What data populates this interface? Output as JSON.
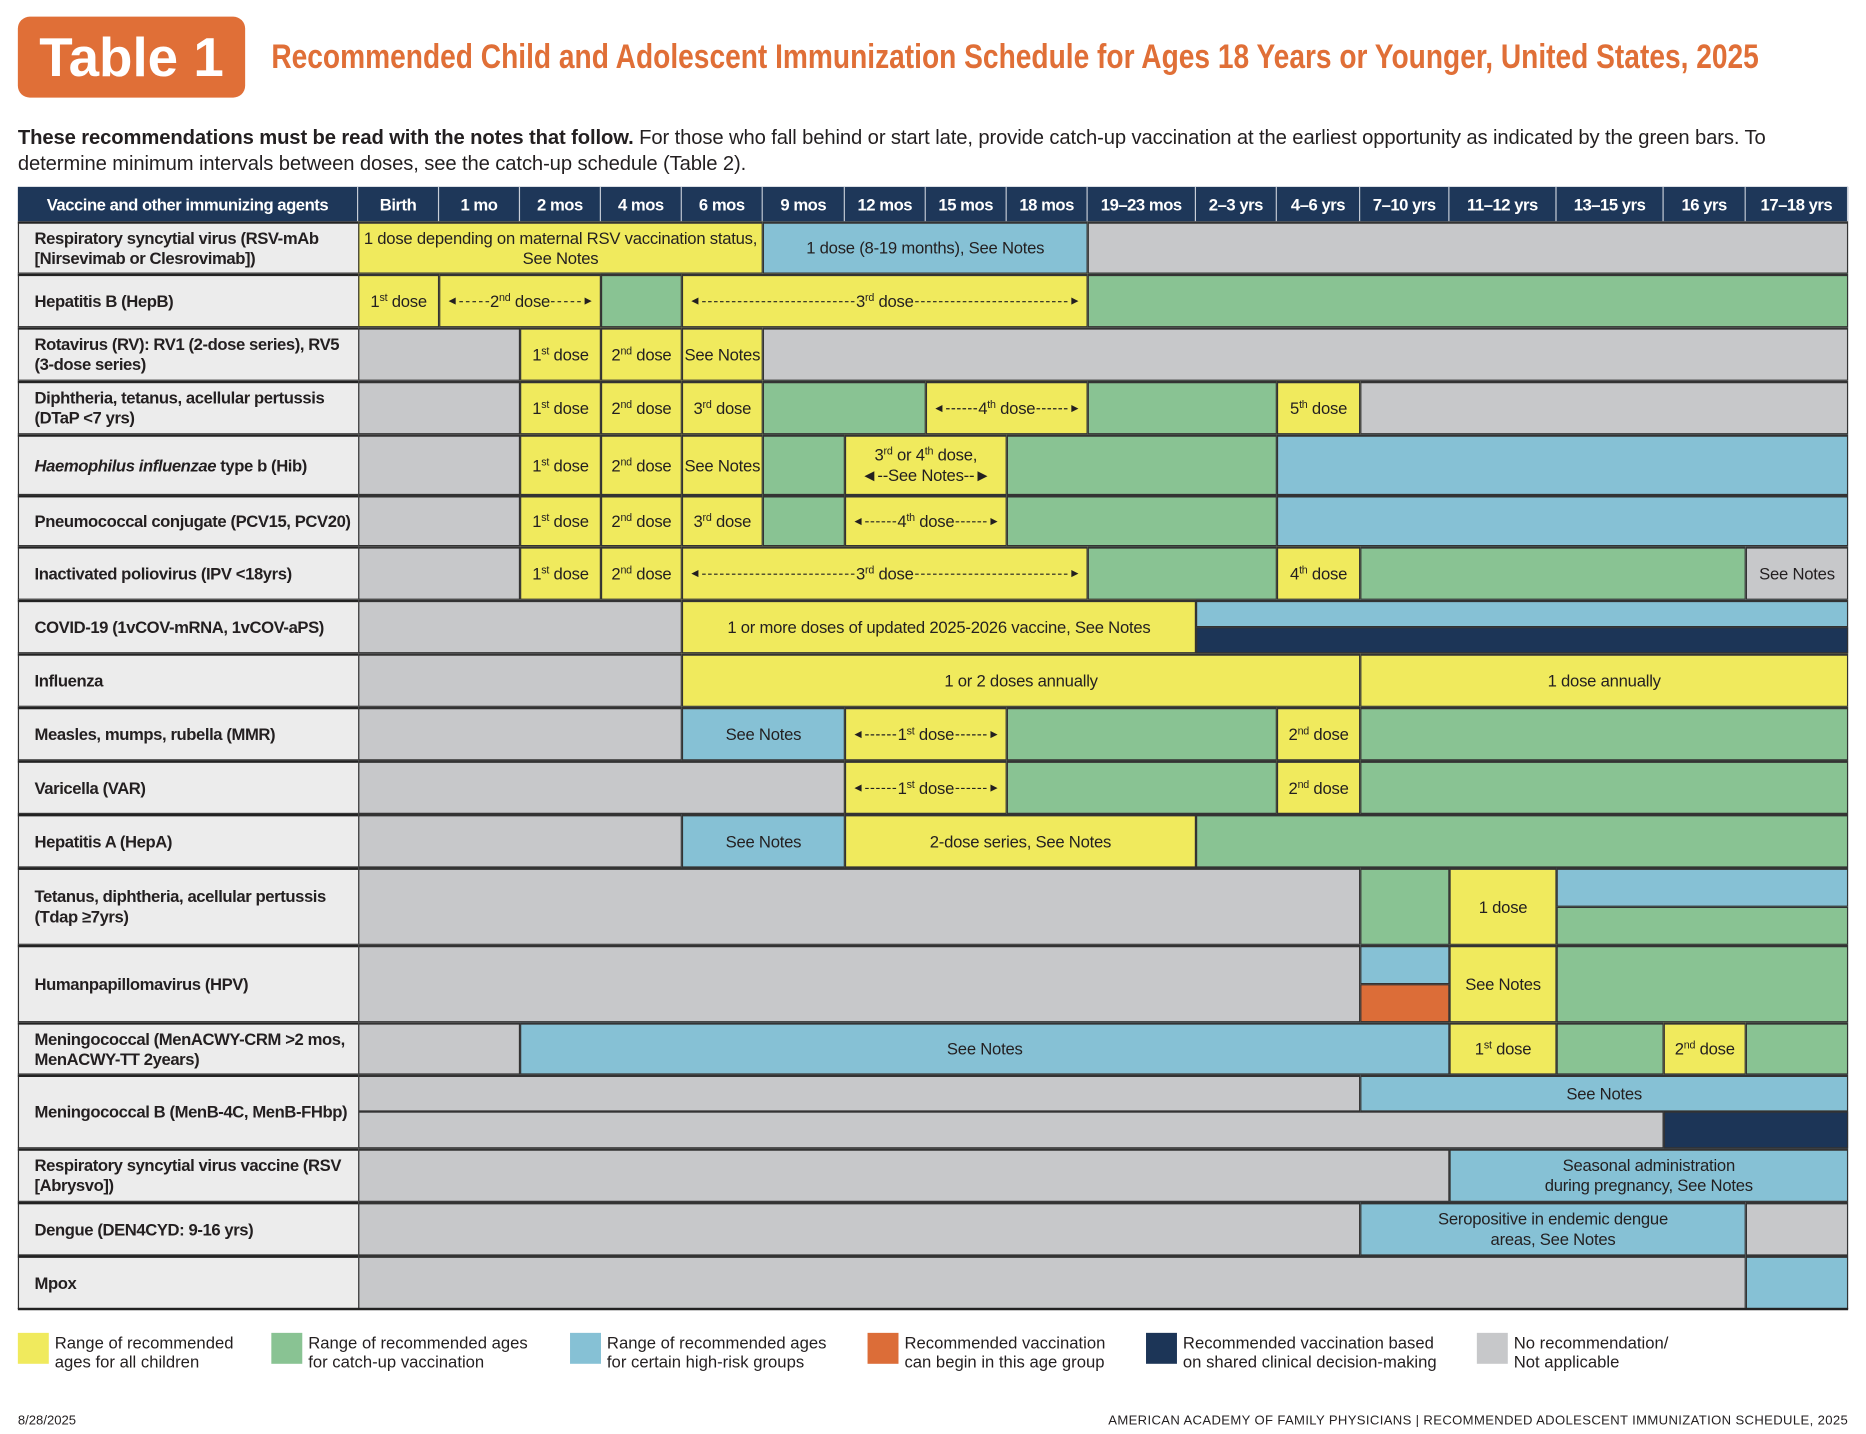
{
  "header": {
    "badge": "Table 1",
    "title": "Recommended Child and Adolescent Immunization Schedule for Ages 18 Years or Younger, United States, 2025",
    "intro_bold": "These recommendations must be read with the notes that follow.",
    "intro_rest": " For those who fall behind or start late, provide catch-up vaccination at the earliest opportunity as indicated by the green bars. To determine minimum intervals between doses, see the catch-up schedule (Table 2)."
  },
  "colors": {
    "yellow": "#f0ea5d",
    "green": "#89c393",
    "blue": "#86c1d5",
    "orange": "#dc6d38",
    "navy": "#1c3557",
    "gray": "#c7c8ca",
    "header": "#1e3759",
    "title": "#e06f37"
  },
  "table": {
    "first_column_header": "Vaccine and other immunizing agents",
    "ages": [
      "Birth",
      "1 mo",
      "2 mos",
      "4 mos",
      "6 mos",
      "9 mos",
      "12 mos",
      "15 mos",
      "18 mos",
      "19–23 mos",
      "2–3 yrs",
      "4–6 yrs",
      "7–10 yrs",
      "11–12 yrs",
      "13–15 yrs",
      "16 yrs",
      "17–18 yrs"
    ],
    "rows": [
      {
        "label": "Respiratory syncytial virus (RSV-mAb [Nirsevimab or Clesrovimab])",
        "segments": [
          {
            "from": "Birth",
            "to": "6 mos",
            "color": "yellow",
            "text": "1 dose depending on maternal RSV vaccination status, See Notes"
          },
          {
            "from": "9 mos",
            "to": "18 mos",
            "color": "blue",
            "text": "1 dose (8-19 months), See Notes"
          },
          {
            "from": "19–23 mos",
            "to": "17–18 yrs",
            "color": "gray"
          }
        ]
      },
      {
        "label": "Hepatitis B (HepB)",
        "segments": [
          {
            "from": "Birth",
            "to": "Birth",
            "color": "yellow",
            "text": "1st dose"
          },
          {
            "from": "1 mo",
            "to": "2 mos",
            "color": "yellow",
            "text": "2nd dose",
            "arrows": true
          },
          {
            "from": "4 mos",
            "to": "4 mos",
            "color": "green"
          },
          {
            "from": "6 mos",
            "to": "18 mos",
            "color": "yellow",
            "text": "3rd dose",
            "arrows": true
          },
          {
            "from": "19–23 mos",
            "to": "17–18 yrs",
            "color": "green"
          }
        ]
      },
      {
        "label": "Rotavirus (RV): RV1 (2-dose series), RV5 (3-dose series)",
        "segments": [
          {
            "from": "Birth",
            "to": "1 mo",
            "color": "gray"
          },
          {
            "from": "2 mos",
            "to": "2 mos",
            "color": "yellow",
            "text": "1st dose"
          },
          {
            "from": "4 mos",
            "to": "4 mos",
            "color": "yellow",
            "text": "2nd dose"
          },
          {
            "from": "6 mos",
            "to": "6 mos",
            "color": "yellow",
            "text": "See Notes"
          },
          {
            "from": "9 mos",
            "to": "17–18 yrs",
            "color": "gray"
          }
        ]
      },
      {
        "label": "Diphtheria, tetanus, acellular pertussis (DTaP <7 yrs)",
        "segments": [
          {
            "from": "Birth",
            "to": "1 mo",
            "color": "gray"
          },
          {
            "from": "2 mos",
            "to": "2 mos",
            "color": "yellow",
            "text": "1st dose"
          },
          {
            "from": "4 mos",
            "to": "4 mos",
            "color": "yellow",
            "text": "2nd dose"
          },
          {
            "from": "6 mos",
            "to": "6 mos",
            "color": "yellow",
            "text": "3rd dose"
          },
          {
            "from": "9 mos",
            "to": "12 mos",
            "color": "green"
          },
          {
            "from": "15 mos",
            "to": "18 mos",
            "color": "yellow",
            "text": "4th dose",
            "arrows": true
          },
          {
            "from": "19–23 mos",
            "to": "2–3 yrs",
            "color": "green"
          },
          {
            "from": "4–6 yrs",
            "to": "4–6 yrs",
            "color": "yellow",
            "text": "5th dose"
          },
          {
            "from": "7–10 yrs",
            "to": "17–18 yrs",
            "color": "gray"
          }
        ]
      },
      {
        "label_italic": "Haemophilus influenzae",
        "label": " type b (Hib)",
        "segments": [
          {
            "from": "Birth",
            "to": "1 mo",
            "color": "gray"
          },
          {
            "from": "2 mos",
            "to": "2 mos",
            "color": "yellow",
            "text": "1st dose"
          },
          {
            "from": "4 mos",
            "to": "4 mos",
            "color": "yellow",
            "text": "2nd dose"
          },
          {
            "from": "6 mos",
            "to": "6 mos",
            "color": "yellow",
            "text": "See Notes"
          },
          {
            "from": "9 mos",
            "to": "9 mos",
            "color": "green"
          },
          {
            "from": "12 mos",
            "to": "15 mos",
            "color": "yellow",
            "text": "3rd or 4th dose,\n◄--See Notes--►"
          },
          {
            "from": "18 mos",
            "to": "2–3 yrs",
            "color": "green"
          },
          {
            "from": "4–6 yrs",
            "to": "17–18 yrs",
            "color": "blue"
          }
        ]
      },
      {
        "label": "Pneumococcal conjugate (PCV15, PCV20)",
        "segments": [
          {
            "from": "Birth",
            "to": "1 mo",
            "color": "gray"
          },
          {
            "from": "2 mos",
            "to": "2 mos",
            "color": "yellow",
            "text": "1st dose"
          },
          {
            "from": "4 mos",
            "to": "4 mos",
            "color": "yellow",
            "text": "2nd dose"
          },
          {
            "from": "6 mos",
            "to": "6 mos",
            "color": "yellow",
            "text": "3rd dose"
          },
          {
            "from": "9 mos",
            "to": "9 mos",
            "color": "green"
          },
          {
            "from": "12 mos",
            "to": "15 mos",
            "color": "yellow",
            "text": "4th dose",
            "arrows": true
          },
          {
            "from": "18 mos",
            "to": "2–3 yrs",
            "color": "green"
          },
          {
            "from": "4–6 yrs",
            "to": "17–18 yrs",
            "color": "blue"
          }
        ]
      },
      {
        "label": "Inactivated poliovirus (IPV <18yrs)",
        "segments": [
          {
            "from": "Birth",
            "to": "1 mo",
            "color": "gray"
          },
          {
            "from": "2 mos",
            "to": "2 mos",
            "color": "yellow",
            "text": "1st dose"
          },
          {
            "from": "4 mos",
            "to": "4 mos",
            "color": "yellow",
            "text": "2nd dose"
          },
          {
            "from": "6 mos",
            "to": "18 mos",
            "color": "yellow",
            "text": "3rd dose",
            "arrows": true
          },
          {
            "from": "19–23 mos",
            "to": "2–3 yrs",
            "color": "green"
          },
          {
            "from": "4–6 yrs",
            "to": "4–6 yrs",
            "color": "yellow",
            "text": "4th dose"
          },
          {
            "from": "7–10 yrs",
            "to": "16 yrs",
            "color": "green"
          },
          {
            "from": "17–18 yrs",
            "to": "17–18 yrs",
            "color": "gray",
            "text": "See Notes"
          }
        ]
      },
      {
        "label": "COVID-19 (1vCOV-mRNA, 1vCOV-aPS)",
        "segments": [
          {
            "from": "Birth",
            "to": "4 mos",
            "color": "gray"
          },
          {
            "from": "6 mos",
            "to": "19–23 mos",
            "color": "yellow",
            "text": "1 or more doses of updated 2025-2026 vaccine, See Notes"
          },
          {
            "from": "2–3 yrs",
            "to": "17–18 yrs",
            "color": "blue",
            "half": "top"
          },
          {
            "from": "2–3 yrs",
            "to": "17–18 yrs",
            "color": "navy",
            "half": "bottom"
          }
        ]
      },
      {
        "label": "Influenza",
        "segments": [
          {
            "from": "Birth",
            "to": "4 mos",
            "color": "gray"
          },
          {
            "from": "6 mos",
            "to": "4–6 yrs",
            "color": "yellow",
            "text": "1 or 2 doses annually"
          },
          {
            "from": "7–10 yrs",
            "to": "17–18 yrs",
            "color": "yellow",
            "text": "1 dose annually"
          }
        ]
      },
      {
        "label": "Measles, mumps, rubella (MMR)",
        "segments": [
          {
            "from": "Birth",
            "to": "4 mos",
            "color": "gray"
          },
          {
            "from": "6 mos",
            "to": "9 mos",
            "color": "blue",
            "text": "See Notes"
          },
          {
            "from": "12 mos",
            "to": "15 mos",
            "color": "yellow",
            "text": "1st dose",
            "arrows": true
          },
          {
            "from": "18 mos",
            "to": "2–3 yrs",
            "color": "green"
          },
          {
            "from": "4–6 yrs",
            "to": "4–6 yrs",
            "color": "yellow",
            "text": "2nd dose"
          },
          {
            "from": "7–10 yrs",
            "to": "17–18 yrs",
            "color": "green"
          }
        ]
      },
      {
        "label": "Varicella (VAR)",
        "segments": [
          {
            "from": "Birth",
            "to": "9 mos",
            "color": "gray"
          },
          {
            "from": "12 mos",
            "to": "15 mos",
            "color": "yellow",
            "text": "1st dose",
            "arrows": true
          },
          {
            "from": "18 mos",
            "to": "2–3 yrs",
            "color": "green"
          },
          {
            "from": "4–6 yrs",
            "to": "4–6 yrs",
            "color": "yellow",
            "text": "2nd dose"
          },
          {
            "from": "7–10 yrs",
            "to": "17–18 yrs",
            "color": "green"
          }
        ]
      },
      {
        "label": "Hepatitis A (HepA)",
        "segments": [
          {
            "from": "Birth",
            "to": "4 mos",
            "color": "gray"
          },
          {
            "from": "6 mos",
            "to": "9 mos",
            "color": "blue",
            "text": "See Notes"
          },
          {
            "from": "12 mos",
            "to": "19–23 mos",
            "color": "yellow",
            "text": "2-dose series, See Notes"
          },
          {
            "from": "2–3 yrs",
            "to": "17–18 yrs",
            "color": "green"
          }
        ]
      },
      {
        "label": "Tetanus, diphtheria, acellular pertussis (Tdap ≥7yrs)",
        "segments": [
          {
            "from": "Birth",
            "to": "4–6 yrs",
            "color": "gray"
          },
          {
            "from": "7–10 yrs",
            "to": "7–10 yrs",
            "color": "green"
          },
          {
            "from": "11–12 yrs",
            "to": "11–12 yrs",
            "color": "yellow",
            "text": "1 dose"
          },
          {
            "from": "13–15 yrs",
            "to": "17–18 yrs",
            "color": "blue",
            "half": "top"
          },
          {
            "from": "13–15 yrs",
            "to": "17–18 yrs",
            "color": "green",
            "half": "bottom"
          }
        ]
      },
      {
        "label": "Humanpapillomavirus (HPV)",
        "segments": [
          {
            "from": "Birth",
            "to": "4–6 yrs",
            "color": "gray"
          },
          {
            "from": "7–10 yrs",
            "to": "7–10 yrs",
            "color": "blue",
            "half": "top"
          },
          {
            "from": "7–10 yrs",
            "to": "7–10 yrs",
            "color": "orange",
            "half": "bottom"
          },
          {
            "from": "11–12 yrs",
            "to": "11–12 yrs",
            "color": "yellow",
            "text": "See Notes"
          },
          {
            "from": "13–15 yrs",
            "to": "17–18 yrs",
            "color": "green"
          }
        ]
      },
      {
        "label": "Meningococcal (MenACWY-CRM >2 mos, MenACWY-TT 2years)",
        "segments": [
          {
            "from": "Birth",
            "to": "1 mo",
            "color": "gray"
          },
          {
            "from": "2 mos",
            "to": "7–10 yrs",
            "color": "blue",
            "text": "See Notes"
          },
          {
            "from": "11–12 yrs",
            "to": "11–12 yrs",
            "color": "yellow",
            "text": "1st dose"
          },
          {
            "from": "13–15 yrs",
            "to": "13–15 yrs",
            "color": "green"
          },
          {
            "from": "16 yrs",
            "to": "16 yrs",
            "color": "yellow",
            "text": "2nd dose"
          },
          {
            "from": "17–18 yrs",
            "to": "17–18 yrs",
            "color": "green"
          }
        ]
      },
      {
        "label": "Meningococcal B (MenB-4C, MenB-FHbp)",
        "segments": [
          {
            "from": "Birth",
            "to": "4–6 yrs",
            "color": "gray",
            "half": "top"
          },
          {
            "from": "7–10 yrs",
            "to": "17–18 yrs",
            "color": "blue",
            "half": "top",
            "text": "See Notes"
          },
          {
            "from": "Birth",
            "to": "13–15 yrs",
            "color": "gray",
            "half": "bottom"
          },
          {
            "from": "16 yrs",
            "to": "17–18 yrs",
            "color": "navy",
            "half": "bottom"
          }
        ]
      },
      {
        "label": "Respiratory syncytial virus vaccine (RSV [Abrysvo])",
        "segments": [
          {
            "from": "Birth",
            "to": "7–10 yrs",
            "color": "gray"
          },
          {
            "from": "11–12 yrs",
            "to": "17–18 yrs",
            "color": "blue",
            "text": "Seasonal administration\nduring pregnancy, See Notes"
          }
        ]
      },
      {
        "label": "Dengue (DEN4CYD: 9-16 yrs)",
        "segments": [
          {
            "from": "Birth",
            "to": "4–6 yrs",
            "color": "gray"
          },
          {
            "from": "7–10 yrs",
            "to": "16 yrs",
            "color": "blue",
            "text": "Seropositive in endemic dengue\nareas, See Notes"
          },
          {
            "from": "17–18 yrs",
            "to": "17–18 yrs",
            "color": "gray"
          }
        ]
      },
      {
        "label": "Mpox",
        "segments": [
          {
            "from": "Birth",
            "to": "16 yrs",
            "color": "gray"
          },
          {
            "from": "17–18 yrs",
            "to": "17–18 yrs",
            "color": "blue"
          }
        ]
      }
    ]
  },
  "legend": [
    {
      "color": "yellow",
      "text": "Range of recommended\nages for all children"
    },
    {
      "color": "green",
      "text": "Range of recommended ages\nfor catch-up vaccination"
    },
    {
      "color": "blue",
      "text": "Range of recommended ages\nfor certain high-risk groups"
    },
    {
      "color": "orange",
      "text": "Recommended vaccination\ncan begin in this age group"
    },
    {
      "color": "navy",
      "text": "Recommended vaccination based\non shared clinical decision-making"
    },
    {
      "color": "gray",
      "text": "No recommendation/\nNot applicable"
    }
  ],
  "footer": {
    "date": "8/28/2025",
    "source": "AMERICAN ACADEMY OF FAMILY PHYSICIANS | RECOMMENDED ADOLESCENT IMMUNIZATION SCHEDULE, 2025"
  }
}
